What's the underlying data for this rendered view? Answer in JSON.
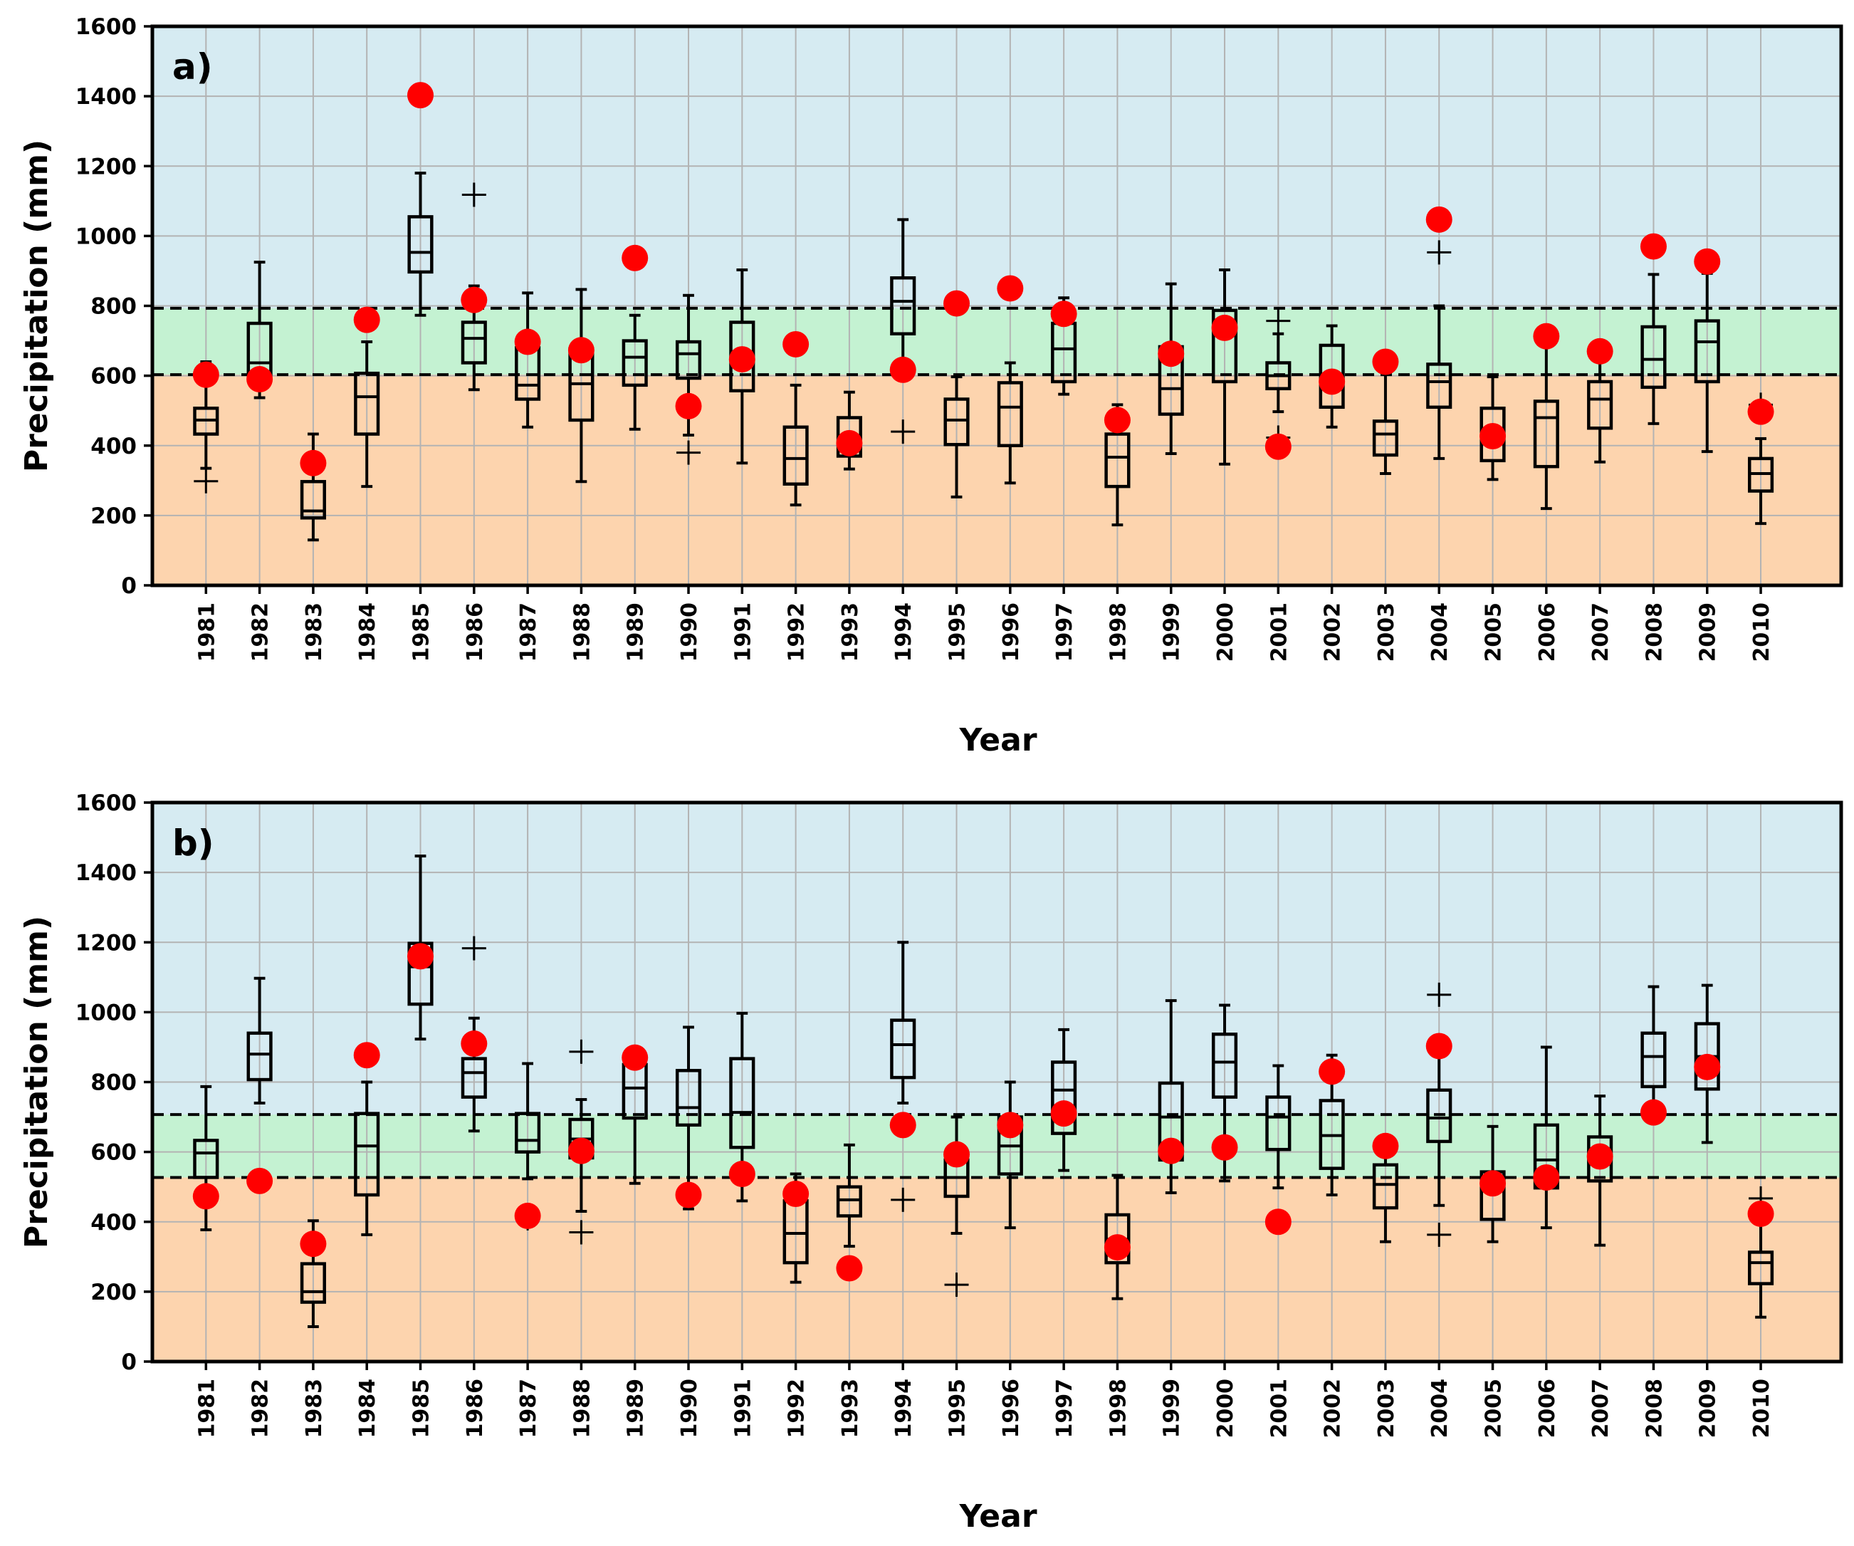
{
  "figure": {
    "colors": {
      "wet": "#d6ebf2",
      "normal": "#c4f2d2",
      "dry": "#fdd4ae",
      "obs": "#ff0000",
      "grid": "#b3b3b3"
    }
  },
  "chart_data": [
    {
      "type": "box",
      "panel_label": "a)",
      "xlabel": "Year",
      "ylabel": "Precipitation (mm)",
      "ylim": [
        0,
        1600
      ],
      "yticks": [
        0,
        200,
        400,
        600,
        800,
        1000,
        1200,
        1400,
        1600
      ],
      "thresholds": {
        "lower": 603,
        "upper": 793
      },
      "categories": [
        "1981",
        "1982",
        "1983",
        "1984",
        "1985",
        "1986",
        "1987",
        "1988",
        "1989",
        "1990",
        "1991",
        "1992",
        "1993",
        "1994",
        "1995",
        "1996",
        "1997",
        "1998",
        "1999",
        "2000",
        "2001",
        "2002",
        "2003",
        "2004",
        "2005",
        "2006",
        "2007",
        "2008",
        "2009",
        "2010"
      ],
      "boxes": [
        {
          "whislo": 335,
          "q1": 433,
          "med": 473,
          "q3": 507,
          "whishi": 640,
          "fliers": [
            298
          ]
        },
        {
          "whislo": 537,
          "q1": 600,
          "med": 637,
          "q3": 750,
          "whishi": 925,
          "fliers": []
        },
        {
          "whislo": 130,
          "q1": 193,
          "med": 213,
          "q3": 297,
          "whishi": 433,
          "fliers": []
        },
        {
          "whislo": 283,
          "q1": 433,
          "med": 540,
          "q3": 607,
          "whishi": 697,
          "fliers": []
        },
        {
          "whislo": 773,
          "q1": 897,
          "med": 953,
          "q3": 1055,
          "whishi": 1180,
          "fliers": []
        },
        {
          "whislo": 560,
          "q1": 637,
          "med": 707,
          "q3": 753,
          "whishi": 857,
          "fliers": [
            1118
          ]
        },
        {
          "whislo": 453,
          "q1": 533,
          "med": 573,
          "q3": 680,
          "whishi": 837,
          "fliers": []
        },
        {
          "whislo": 297,
          "q1": 473,
          "med": 577,
          "q3": 677,
          "whishi": 847,
          "fliers": []
        },
        {
          "whislo": 447,
          "q1": 573,
          "med": 653,
          "q3": 700,
          "whishi": 773,
          "fliers": []
        },
        {
          "whislo": 430,
          "q1": 593,
          "med": 663,
          "q3": 697,
          "whishi": 830,
          "fliers": [
            380
          ]
        },
        {
          "whislo": 350,
          "q1": 557,
          "med": 650,
          "q3": 753,
          "whishi": 903,
          "fliers": []
        },
        {
          "whislo": 230,
          "q1": 290,
          "med": 363,
          "q3": 453,
          "whishi": 573,
          "fliers": []
        },
        {
          "whislo": 333,
          "q1": 370,
          "med": 403,
          "q3": 480,
          "whishi": 553,
          "fliers": []
        },
        {
          "whislo": 640,
          "q1": 720,
          "med": 813,
          "q3": 880,
          "whishi": 1047,
          "fliers": [
            440
          ]
        },
        {
          "whislo": 253,
          "q1": 403,
          "med": 473,
          "q3": 533,
          "whishi": 597,
          "fliers": []
        },
        {
          "whislo": 293,
          "q1": 400,
          "med": 510,
          "q3": 580,
          "whishi": 637,
          "fliers": []
        },
        {
          "whislo": 547,
          "q1": 583,
          "med": 677,
          "q3": 750,
          "whishi": 823,
          "fliers": []
        },
        {
          "whislo": 173,
          "q1": 283,
          "med": 367,
          "q3": 433,
          "whishi": 517,
          "fliers": []
        },
        {
          "whislo": 377,
          "q1": 490,
          "med": 563,
          "q3": 683,
          "whishi": 863,
          "fliers": []
        },
        {
          "whislo": 347,
          "q1": 583,
          "med": 717,
          "q3": 787,
          "whishi": 903,
          "fliers": []
        },
        {
          "whislo": 497,
          "q1": 563,
          "med": 600,
          "q3": 637,
          "whishi": 720,
          "fliers": [
            757,
            423
          ]
        },
        {
          "whislo": 453,
          "q1": 510,
          "med": 587,
          "q3": 687,
          "whishi": 743,
          "fliers": []
        },
        {
          "whislo": 320,
          "q1": 373,
          "med": 433,
          "q3": 470,
          "whishi": 613,
          "fliers": []
        },
        {
          "whislo": 363,
          "q1": 510,
          "med": 583,
          "q3": 633,
          "whishi": 800,
          "fliers": [
            953
          ]
        },
        {
          "whislo": 303,
          "q1": 357,
          "med": 423,
          "q3": 507,
          "whishi": 597,
          "fliers": []
        },
        {
          "whislo": 220,
          "q1": 340,
          "med": 480,
          "q3": 527,
          "whishi": 720,
          "fliers": []
        },
        {
          "whislo": 353,
          "q1": 450,
          "med": 533,
          "q3": 583,
          "whishi": 663,
          "fliers": []
        },
        {
          "whislo": 463,
          "q1": 567,
          "med": 647,
          "q3": 740,
          "whishi": 890,
          "fliers": []
        },
        {
          "whislo": 383,
          "q1": 583,
          "med": 697,
          "q3": 757,
          "whishi": 893,
          "fliers": []
        },
        {
          "whislo": 177,
          "q1": 270,
          "med": 320,
          "q3": 363,
          "whishi": 420,
          "fliers": [
            517
          ]
        }
      ],
      "observed": [
        603,
        590,
        350,
        760,
        1403,
        817,
        697,
        673,
        937,
        513,
        647,
        690,
        407,
        617,
        807,
        850,
        777,
        473,
        663,
        737,
        397,
        583,
        640,
        1047,
        427,
        713,
        670,
        970,
        927,
        497
      ]
    },
    {
      "type": "box",
      "panel_label": "b)",
      "xlabel": "Year",
      "ylabel": "Precipitation (mm)",
      "ylim": [
        0,
        1600
      ],
      "yticks": [
        0,
        200,
        400,
        600,
        800,
        1000,
        1200,
        1400,
        1600
      ],
      "thresholds": {
        "lower": 527,
        "upper": 707
      },
      "categories": [
        "1981",
        "1982",
        "1983",
        "1984",
        "1985",
        "1986",
        "1987",
        "1988",
        "1989",
        "1990",
        "1991",
        "1992",
        "1993",
        "1994",
        "1995",
        "1996",
        "1997",
        "1998",
        "1999",
        "2000",
        "2001",
        "2002",
        "2003",
        "2004",
        "2005",
        "2006",
        "2007",
        "2008",
        "2009",
        "2010"
      ],
      "boxes": [
        {
          "whislo": 377,
          "q1": 527,
          "med": 597,
          "q3": 633,
          "whishi": 787,
          "fliers": []
        },
        {
          "whislo": 740,
          "q1": 807,
          "med": 880,
          "q3": 940,
          "whishi": 1097,
          "fliers": []
        },
        {
          "whislo": 100,
          "q1": 170,
          "med": 200,
          "q3": 280,
          "whishi": 403,
          "fliers": []
        },
        {
          "whislo": 363,
          "q1": 477,
          "med": 617,
          "q3": 710,
          "whishi": 800,
          "fliers": []
        },
        {
          "whislo": 923,
          "q1": 1023,
          "med": 1130,
          "q3": 1197,
          "whishi": 1447,
          "fliers": []
        },
        {
          "whislo": 660,
          "q1": 757,
          "med": 827,
          "q3": 867,
          "whishi": 983,
          "fliers": [
            1183
          ]
        },
        {
          "whislo": 523,
          "q1": 600,
          "med": 633,
          "q3": 710,
          "whishi": 853,
          "fliers": [
            410
          ]
        },
        {
          "whislo": 430,
          "q1": 583,
          "med": 637,
          "q3": 693,
          "whishi": 750,
          "fliers": [
            887,
            370
          ]
        },
        {
          "whislo": 510,
          "q1": 697,
          "med": 783,
          "q3": 850,
          "whishi": 890,
          "fliers": []
        },
        {
          "whislo": 437,
          "q1": 677,
          "med": 727,
          "q3": 833,
          "whishi": 957,
          "fliers": []
        },
        {
          "whislo": 460,
          "q1": 613,
          "med": 713,
          "q3": 867,
          "whishi": 997,
          "fliers": []
        },
        {
          "whislo": 227,
          "q1": 283,
          "med": 367,
          "q3": 460,
          "whishi": 537,
          "fliers": []
        },
        {
          "whislo": 330,
          "q1": 417,
          "med": 463,
          "q3": 500,
          "whishi": 620,
          "fliers": []
        },
        {
          "whislo": 740,
          "q1": 813,
          "med": 907,
          "q3": 977,
          "whishi": 1200,
          "fliers": [
            463
          ]
        },
        {
          "whislo": 367,
          "q1": 473,
          "med": 527,
          "q3": 577,
          "whishi": 700,
          "fliers": [
            220
          ]
        },
        {
          "whislo": 383,
          "q1": 537,
          "med": 617,
          "q3": 700,
          "whishi": 800,
          "fliers": []
        },
        {
          "whislo": 547,
          "q1": 653,
          "med": 777,
          "q3": 857,
          "whishi": 950,
          "fliers": []
        },
        {
          "whislo": 180,
          "q1": 283,
          "med": 350,
          "q3": 420,
          "whishi": 533,
          "fliers": []
        },
        {
          "whislo": 483,
          "q1": 577,
          "med": 700,
          "q3": 797,
          "whishi": 1033,
          "fliers": []
        },
        {
          "whislo": 517,
          "q1": 757,
          "med": 857,
          "q3": 937,
          "whishi": 1020,
          "fliers": []
        },
        {
          "whislo": 497,
          "q1": 607,
          "med": 700,
          "q3": 757,
          "whishi": 847,
          "fliers": []
        },
        {
          "whislo": 477,
          "q1": 553,
          "med": 647,
          "q3": 747,
          "whishi": 877,
          "fliers": []
        },
        {
          "whislo": 343,
          "q1": 440,
          "med": 507,
          "q3": 563,
          "whishi": 630,
          "fliers": []
        },
        {
          "whislo": 447,
          "q1": 630,
          "med": 697,
          "q3": 777,
          "whishi": 933,
          "fliers": [
            1050,
            363
          ]
        },
        {
          "whislo": 343,
          "q1": 407,
          "med": 503,
          "q3": 543,
          "whishi": 673,
          "fliers": []
        },
        {
          "whislo": 383,
          "q1": 497,
          "med": 577,
          "q3": 677,
          "whishi": 900,
          "fliers": []
        },
        {
          "whislo": 333,
          "q1": 517,
          "med": 583,
          "q3": 643,
          "whishi": 760,
          "fliers": []
        },
        {
          "whislo": 713,
          "q1": 787,
          "med": 873,
          "q3": 940,
          "whishi": 1073,
          "fliers": []
        },
        {
          "whislo": 627,
          "q1": 780,
          "med": 873,
          "q3": 967,
          "whishi": 1077,
          "fliers": []
        },
        {
          "whislo": 127,
          "q1": 223,
          "med": 283,
          "q3": 313,
          "whishi": 420,
          "fliers": [
            467
          ]
        }
      ],
      "observed": [
        473,
        517,
        337,
        877,
        1160,
        910,
        417,
        603,
        870,
        477,
        537,
        480,
        267,
        677,
        593,
        677,
        710,
        327,
        603,
        613,
        400,
        830,
        617,
        903,
        510,
        527,
        587,
        713,
        843,
        423
      ]
    }
  ]
}
